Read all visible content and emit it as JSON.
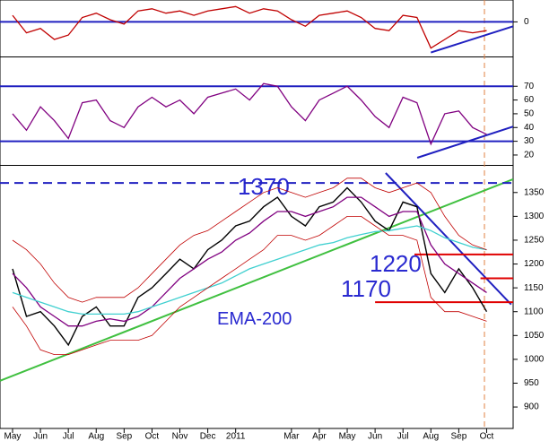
{
  "chart_data": [
    {
      "type": "line",
      "ylim": [
        -1.58,
        1
      ],
      "yticks": [
        0
      ],
      "xlim": [
        -0.45,
        17.95
      ],
      "x": [
        0,
        0.5,
        1,
        1.5,
        2,
        2.5,
        3,
        3.5,
        4,
        4.5,
        5,
        5.5,
        6,
        6.5,
        7,
        7.5,
        8,
        8.5,
        9,
        9.5,
        10,
        10.5,
        11,
        11.5,
        12,
        12.5,
        13,
        13.5,
        14,
        14.5,
        15,
        15.5,
        16,
        16.5,
        17
      ],
      "series": [
        {
          "color": "#c00000",
          "values": [
            0.3,
            -0.5,
            -0.3,
            -0.8,
            -0.6,
            0.2,
            0.4,
            0.1,
            -0.1,
            0.5,
            0.6,
            0.4,
            0.5,
            0.3,
            0.5,
            0.6,
            0.7,
            0.4,
            0.6,
            0.5,
            0.1,
            -0.2,
            0.3,
            0.4,
            0.5,
            0.2,
            -0.3,
            -0.4,
            0.3,
            0.2,
            -1.2,
            -0.8,
            -0.4,
            -0.5,
            -0.4
          ]
        }
      ],
      "lines": [
        {
          "color": "#2020c0",
          "x": [
            -0.45,
            17.95
          ],
          "values": [
            0,
            0
          ]
        },
        {
          "color": "#2020c0",
          "x": [
            15.0,
            17.95
          ],
          "values": [
            -1.4,
            -0.2
          ]
        }
      ]
    },
    {
      "type": "line",
      "ylim": [
        12.8,
        91
      ],
      "yticks": [
        20,
        30,
        40,
        50,
        60,
        70
      ],
      "xlim": [
        -0.45,
        17.95
      ],
      "x": [
        0,
        0.5,
        1,
        1.5,
        2,
        2.5,
        3,
        3.5,
        4,
        4.5,
        5,
        5.5,
        6,
        6.5,
        7,
        7.5,
        8,
        8.5,
        9,
        9.5,
        10,
        10.5,
        11,
        11.5,
        12,
        12.5,
        13,
        13.5,
        14,
        14.5,
        15,
        15.5,
        16,
        16.5,
        17
      ],
      "series": [
        {
          "color": "#800080",
          "values": [
            50,
            38,
            55,
            45,
            32,
            58,
            60,
            45,
            40,
            55,
            62,
            55,
            60,
            50,
            62,
            65,
            68,
            60,
            72,
            70,
            55,
            45,
            60,
            65,
            70,
            60,
            48,
            40,
            62,
            58,
            28,
            50,
            52,
            40,
            35
          ]
        }
      ],
      "lines": [
        {
          "color": "#2020c0",
          "x": [
            -0.45,
            17.95
          ],
          "values": [
            70,
            70
          ]
        },
        {
          "color": "#2020c0",
          "x": [
            -0.45,
            17.95
          ],
          "values": [
            30,
            30
          ]
        },
        {
          "color": "#2020c0",
          "x": [
            14.51,
            17.95
          ],
          "values": [
            18,
            40.7
          ]
        }
      ]
    },
    {
      "type": "line",
      "ylim": [
        855,
        1406
      ],
      "yticks": [
        900,
        950,
        1000,
        1050,
        1100,
        1150,
        1200,
        1250,
        1300,
        1350
      ],
      "xlim": [
        -0.45,
        17.95
      ],
      "xticks": [
        {
          "value": 0,
          "label": "May"
        },
        {
          "value": 1,
          "label": "Jun"
        },
        {
          "value": 2,
          "label": "Jul"
        },
        {
          "value": 3,
          "label": "Aug"
        },
        {
          "value": 4,
          "label": "Sep"
        },
        {
          "value": 5,
          "label": "Oct"
        },
        {
          "value": 6,
          "label": "Nov"
        },
        {
          "value": 7,
          "label": "Dec"
        },
        {
          "value": 8,
          "label": "2011"
        },
        {
          "value": 10,
          "label": "Mar"
        },
        {
          "value": 11,
          "label": "Apr"
        },
        {
          "value": 12,
          "label": "May"
        },
        {
          "value": 13,
          "label": "Jun"
        },
        {
          "value": 14,
          "label": "Jul"
        },
        {
          "value": 15,
          "label": "Aug"
        },
        {
          "value": 16,
          "label": "Sep"
        },
        {
          "value": 17,
          "label": "Oct"
        }
      ],
      "x": [
        0,
        0.5,
        1,
        1.5,
        2,
        2.5,
        3,
        3.5,
        4,
        4.5,
        5,
        5.5,
        6,
        6.5,
        7,
        7.5,
        8,
        8.5,
        9,
        9.5,
        10,
        10.5,
        11,
        11.5,
        12,
        12.5,
        13,
        13.5,
        14,
        14.5,
        15,
        15.5,
        16,
        16.5,
        17
      ],
      "series": [
        {
          "color": "#000000",
          "values": [
            1190,
            1090,
            1100,
            1070,
            1030,
            1090,
            1110,
            1070,
            1070,
            1130,
            1150,
            1180,
            1210,
            1190,
            1230,
            1250,
            1280,
            1290,
            1320,
            1340,
            1300,
            1280,
            1320,
            1330,
            1360,
            1330,
            1290,
            1270,
            1330,
            1320,
            1180,
            1140,
            1190,
            1150,
            1100
          ]
        },
        {
          "color": "#800080",
          "values": [
            1180,
            1150,
            1110,
            1090,
            1070,
            1070,
            1080,
            1085,
            1080,
            1090,
            1110,
            1140,
            1170,
            1190,
            1210,
            1225,
            1250,
            1265,
            1290,
            1310,
            1310,
            1300,
            1310,
            1320,
            1340,
            1340,
            1320,
            1300,
            1310,
            1310,
            1240,
            1200,
            1180,
            1160,
            1140
          ]
        },
        {
          "color": "#40d0d0",
          "values": [
            1140,
            1130,
            1120,
            1110,
            1100,
            1095,
            1095,
            1095,
            1095,
            1100,
            1110,
            1120,
            1130,
            1140,
            1150,
            1160,
            1175,
            1190,
            1200,
            1210,
            1220,
            1230,
            1240,
            1245,
            1255,
            1262,
            1268,
            1270,
            1275,
            1280,
            1270,
            1255,
            1245,
            1235,
            1230
          ]
        },
        {
          "color": "#c00000",
          "values": [
            1250,
            1230,
            1200,
            1160,
            1130,
            1120,
            1130,
            1130,
            1130,
            1150,
            1180,
            1210,
            1240,
            1260,
            1270,
            1290,
            1310,
            1330,
            1350,
            1360,
            1350,
            1340,
            1350,
            1360,
            1380,
            1380,
            1360,
            1350,
            1360,
            1370,
            1350,
            1300,
            1260,
            1240,
            1230
          ]
        },
        {
          "color": "#c00000",
          "values": [
            1110,
            1070,
            1020,
            1010,
            1010,
            1020,
            1030,
            1040,
            1040,
            1040,
            1050,
            1080,
            1110,
            1130,
            1150,
            1170,
            1190,
            1210,
            1230,
            1260,
            1260,
            1250,
            1260,
            1280,
            1300,
            1300,
            1280,
            1260,
            1260,
            1250,
            1130,
            1100,
            1100,
            1090,
            1080
          ]
        }
      ],
      "lines": [
        {
          "color": "#40c040",
          "x": [
            -0.45,
            17.95
          ],
          "values": [
            955,
            1378
          ]
        },
        {
          "color": "#2020c0",
          "dashed": true,
          "x": [
            -0.45,
            17.95
          ],
          "values": [
            1370,
            1370
          ]
        },
        {
          "color": "#2020c0",
          "x": [
            13.38,
            17.88
          ],
          "values": [
            1391,
            1115
          ]
        },
        {
          "color": "#e00000",
          "x": [
            14.41,
            17.95
          ],
          "values": [
            1220,
            1220
          ]
        },
        {
          "color": "#e00000",
          "x": [
            13.0,
            17.95
          ],
          "values": [
            1120,
            1120
          ]
        },
        {
          "color": "#e00000",
          "x": [
            16.78,
            17.95
          ],
          "values": [
            1170,
            1170
          ]
        }
      ],
      "annotations": [
        "1370",
        "1220",
        "1170",
        "EMA-200"
      ]
    }
  ]
}
